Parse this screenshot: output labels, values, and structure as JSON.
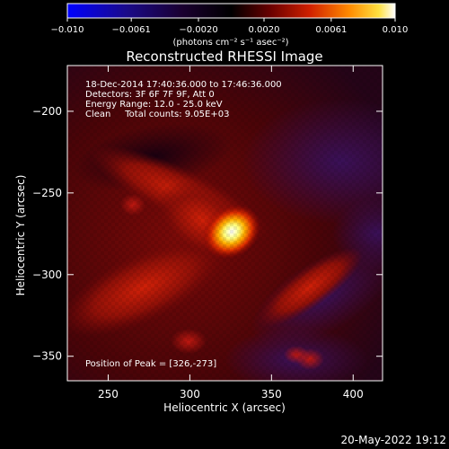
{
  "chart_data": {
    "type": "heatmap",
    "title": "Reconstructed RHESSI Image",
    "xlabel": "Heliocentric X (arcsec)",
    "ylabel": "Heliocentric Y (arcsec)",
    "xlim": [
      225,
      418
    ],
    "ylim": [
      -365,
      -172
    ],
    "x_ticks": [
      250,
      300,
      350,
      400
    ],
    "y_ticks": [
      -200,
      -250,
      -300,
      -350
    ],
    "colorbar": {
      "min": -0.01,
      "max": 0.01,
      "tick_values": [
        -0.01,
        -0.0061,
        -0.002,
        0.002,
        0.0061,
        0.01
      ],
      "tick_labels": [
        "−0.010",
        "−0.0061",
        "−0.0020",
        "0.0020",
        "0.0061",
        "0.010"
      ],
      "units": "(photons cm⁻² s⁻¹ asec⁻²)"
    },
    "annotations": [
      "18-Dec-2014 17:40:36.000 to 17:46:36.000",
      "Detectors: 3F 6F 7F 9F, Att 0",
      "Energy Range: 12.0 - 25.0 keV",
      "Clean     Total counts: 9.05E+03"
    ],
    "peak": {
      "label": "Position of Peak = [326,-273]",
      "x": 326,
      "y": -273
    },
    "colors": {
      "accent": "#ffffff",
      "background": "#000000"
    }
  },
  "footer": {
    "timestamp": "20-May-2022 19:12"
  }
}
